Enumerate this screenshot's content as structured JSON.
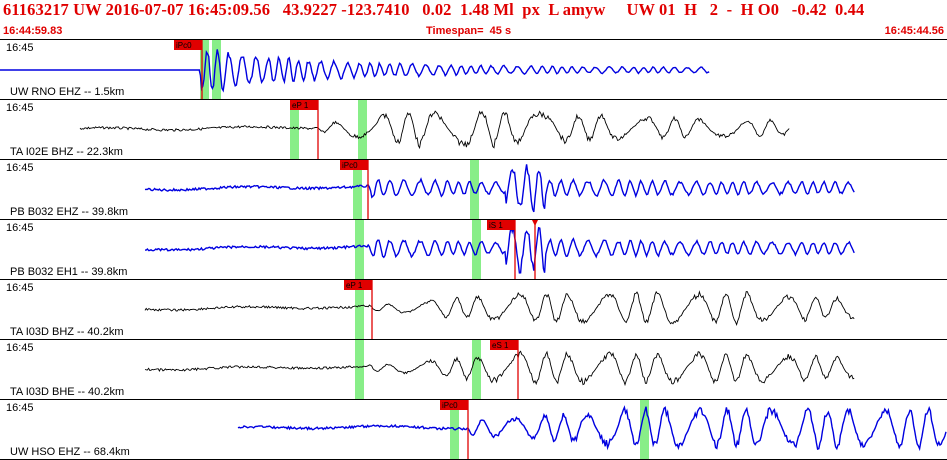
{
  "header": {
    "title_line": "61163217 UW 2016-07-07 16:45:09.56   43.9227 -123.7410   0.02  1.48 Ml  px  L amyw     UW 01  H   2  -  H O0   -0.42  0.44",
    "start_time": "16:44:59.83",
    "timespan": "Timespan=  45 s",
    "end_time": "16:45:44.56"
  },
  "colors": {
    "header_text": "#e00000",
    "blue_trace": "#0000e0",
    "black_trace": "#000000",
    "green_window": "#88ee88",
    "pick": "#e00000"
  },
  "panels": [
    {
      "time": "16:45",
      "label": "UW RNO EHZ -- 1.5km",
      "trace": "blue",
      "start": 0,
      "onset": 200,
      "end": 710,
      "amp": 22,
      "style": "impulsive",
      "pre_flat": true,
      "greens": [
        200,
        212
      ],
      "picks": [
        {
          "label": "iPc0",
          "x": 202
        }
      ]
    },
    {
      "time": "16:45",
      "label": "TA I02E BHZ -- 22.3km",
      "trace": "black",
      "start": 80,
      "onset": 318,
      "end": 790,
      "amp": 16,
      "style": "teleseism",
      "pre_flat": false,
      "greens": [
        290,
        358
      ],
      "picks": [
        {
          "label": "eP 1",
          "x": 318
        }
      ]
    },
    {
      "time": "16:45",
      "label": "PB B032 EHZ -- 39.8km",
      "trace": "blue",
      "start": 145,
      "onset": 370,
      "end": 855,
      "amp": 18,
      "style": "local",
      "pre_flat": false,
      "greens": [
        353,
        470
      ],
      "picks": [
        {
          "label": "iPc0",
          "x": 368
        }
      ]
    },
    {
      "time": "16:45",
      "label": "PB B032 EH1 -- 39.8km",
      "trace": "blue",
      "start": 145,
      "onset": 370,
      "end": 855,
      "amp": 18,
      "style": "local",
      "pre_flat": false,
      "greens": [
        355,
        472
      ],
      "picks": [
        {
          "label": "iS 1",
          "x": 515
        },
        {
          "label": "",
          "x": 535
        }
      ]
    },
    {
      "time": "16:45",
      "label": "TA I03D BHZ -- 40.2km",
      "trace": "black",
      "start": 145,
      "onset": 372,
      "end": 855,
      "amp": 14,
      "style": "teleseism2",
      "pre_flat": false,
      "greens": [
        355
      ],
      "picks": [
        {
          "label": "eP 1",
          "x": 372
        }
      ]
    },
    {
      "time": "16:45",
      "label": "TA I03D BHE -- 40.2km",
      "trace": "black",
      "start": 145,
      "onset": 372,
      "end": 855,
      "amp": 14,
      "style": "teleseism2",
      "pre_flat": false,
      "greens": [
        355,
        472
      ],
      "picks": [
        {
          "label": "eS 1",
          "x": 518
        }
      ]
    },
    {
      "time": "16:45",
      "label": "UW HSO EHZ -- 68.4km",
      "trace": "blue",
      "start": 238,
      "onset": 468,
      "end": 947,
      "amp": 20,
      "style": "distant",
      "pre_flat": false,
      "greens": [
        450,
        640
      ],
      "picks": [
        {
          "label": "iPc0",
          "x": 468
        }
      ]
    }
  ]
}
